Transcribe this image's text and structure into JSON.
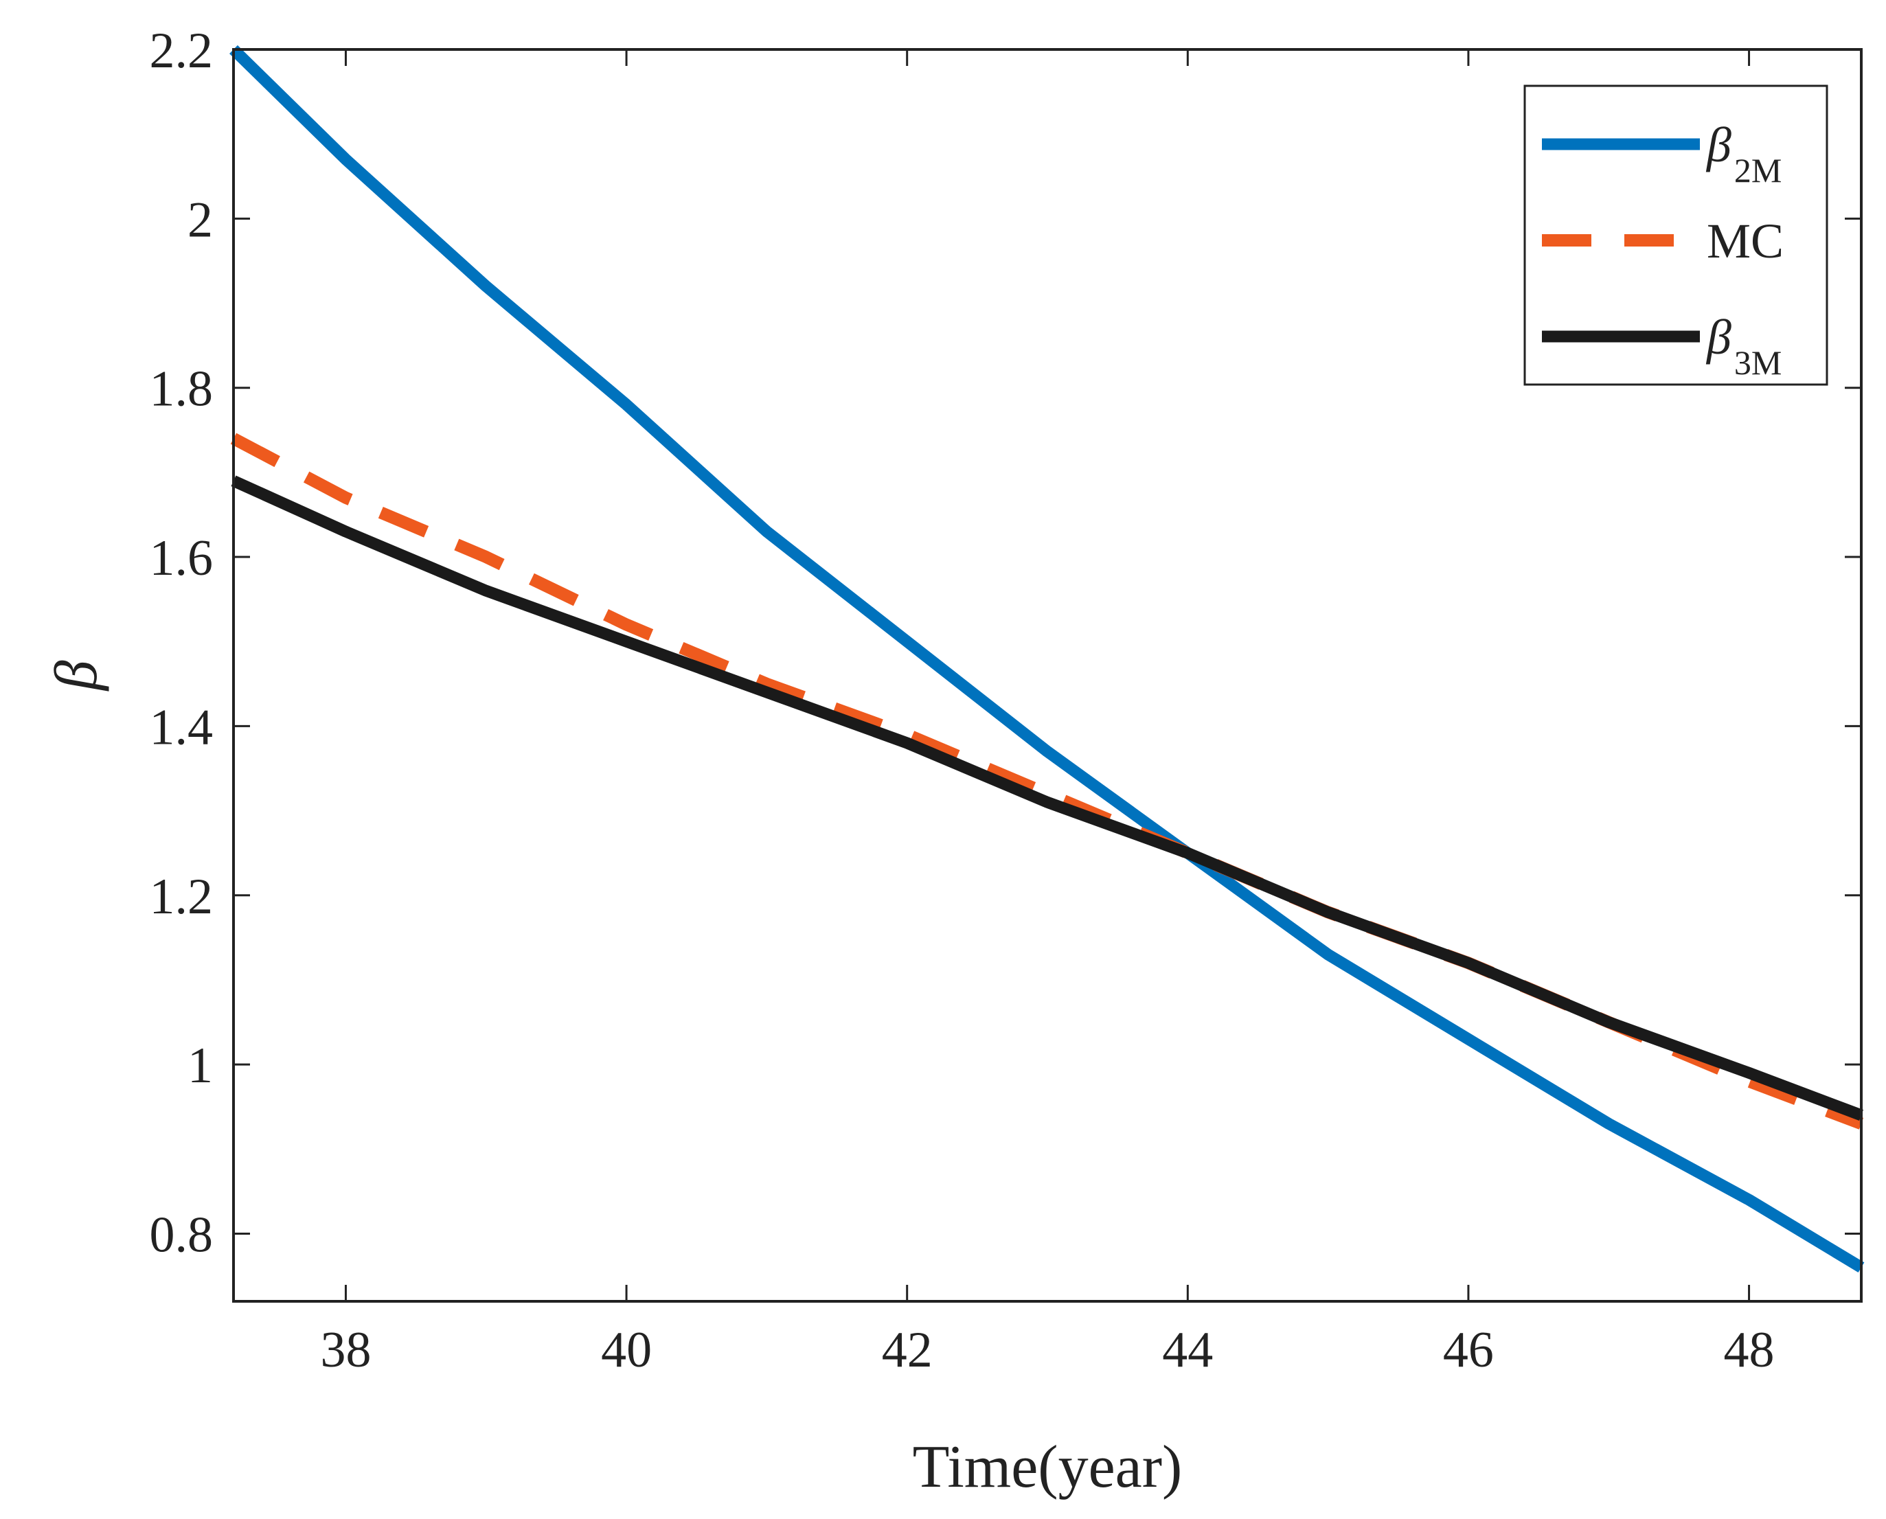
{
  "chart_data": {
    "type": "line",
    "title": "",
    "xlabel": "Time(year)",
    "ylabel": "β",
    "xlim": [
      37.2,
      48.8
    ],
    "ylim": [
      0.72,
      2.2
    ],
    "xticks": [
      38,
      40,
      42,
      44,
      46,
      48
    ],
    "yticks": [
      0.8,
      1,
      1.2,
      1.4,
      1.6,
      1.8,
      2,
      2.2
    ],
    "xtick_labels": [
      "38",
      "40",
      "42",
      "44",
      "46",
      "48"
    ],
    "ytick_labels": [
      "0.8",
      "1",
      "1.2",
      "1.4",
      "1.6",
      "1.8",
      "2",
      "2.2"
    ],
    "grid": false,
    "legend_position": "top-right",
    "series": [
      {
        "name": "β2M",
        "label_base": "β",
        "label_sub": "2M",
        "color": "#0072BD",
        "style": "solid",
        "x": [
          37.2,
          38,
          39,
          40,
          41,
          42,
          43,
          44,
          45,
          46,
          47,
          48,
          48.8
        ],
        "y": [
          2.2,
          2.07,
          1.92,
          1.78,
          1.63,
          1.5,
          1.37,
          1.25,
          1.13,
          1.03,
          0.93,
          0.84,
          0.76
        ]
      },
      {
        "name": "MC",
        "label_base": "MC",
        "label_sub": "",
        "color": "#EE5A1E",
        "style": "dashed",
        "x": [
          37.2,
          38,
          39,
          40,
          41,
          42,
          43,
          44,
          45,
          46,
          47,
          48,
          48.8
        ],
        "y": [
          1.74,
          1.67,
          1.6,
          1.52,
          1.45,
          1.39,
          1.32,
          1.25,
          1.18,
          1.12,
          1.05,
          0.98,
          0.93
        ]
      },
      {
        "name": "β3M",
        "label_base": "β",
        "label_sub": "3M",
        "color": "#1A1A1A",
        "style": "solid",
        "x": [
          37.2,
          38,
          39,
          40,
          41,
          42,
          43,
          44,
          45,
          46,
          47,
          48,
          48.8
        ],
        "y": [
          1.69,
          1.63,
          1.56,
          1.5,
          1.44,
          1.38,
          1.31,
          1.25,
          1.18,
          1.12,
          1.05,
          0.99,
          0.94
        ]
      }
    ]
  }
}
